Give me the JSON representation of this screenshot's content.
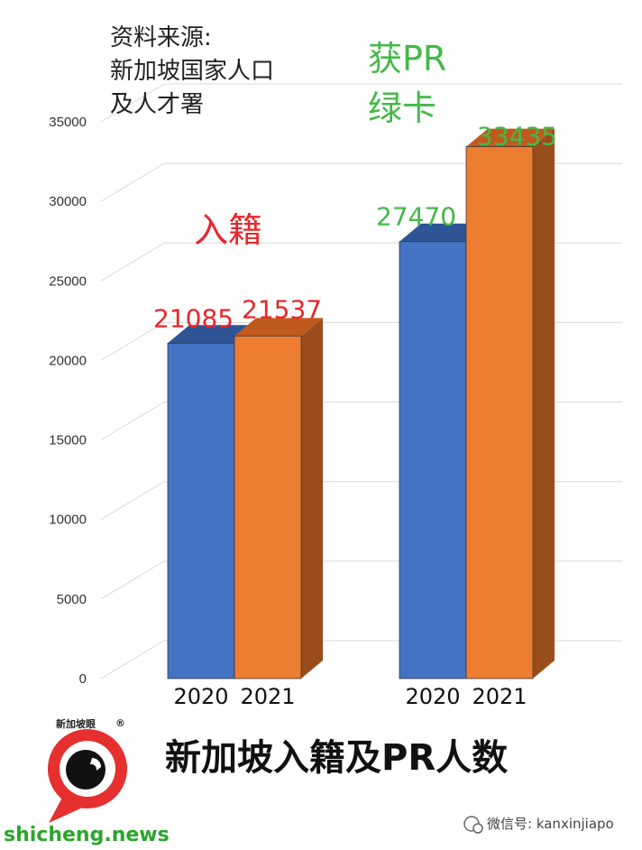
{
  "source": {
    "lines": [
      "资料来源:",
      "新加坡国家人口",
      "及人才署"
    ]
  },
  "title": "新加坡入籍及PR人数",
  "group_labels": [
    {
      "lines": [
        "入籍"
      ],
      "color": "#e8262b"
    },
    {
      "lines": [
        "获PR",
        "绿卡"
      ],
      "color": "#43b947"
    }
  ],
  "colors": {
    "blue_front": "#4472c4",
    "blue_side": "#2c4f8f",
    "blue_top": "#2f5597",
    "orange_front": "#ed7d31",
    "orange_side": "#9a4d1c",
    "orange_top": "#c05a1c",
    "label_red": "#e8262b",
    "label_green": "#43b947"
  },
  "chart_data": {
    "type": "bar",
    "title": "新加坡入籍及PR人数",
    "ylim": [
      0,
      35000
    ],
    "yticks": [
      0,
      5000,
      10000,
      15000,
      20000,
      25000,
      30000,
      35000
    ],
    "grid": true,
    "groups": [
      {
        "name": "入籍",
        "categories": [
          "2020",
          "2021"
        ],
        "values": [
          21085,
          21537
        ]
      },
      {
        "name": "获PR 绿卡",
        "categories": [
          "2020",
          "2021"
        ],
        "values": [
          27470,
          33435
        ]
      }
    ]
  },
  "logo": {
    "caption": "新加坡眼",
    "mark": "®"
  },
  "watermark": {
    "site": "shicheng.news",
    "wechat": "微信号: kanxinjiapo"
  }
}
